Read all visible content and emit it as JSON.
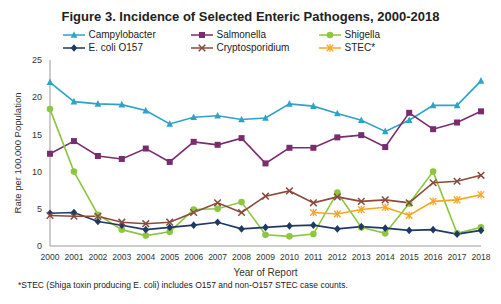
{
  "chart_data": {
    "type": "line",
    "title": "Figure 3. Incidence of Selected Enteric Pathogens, 2000-2018",
    "x_label": "Year of Report",
    "y_label": "Rate per 100,000 Population",
    "annotations": [
      "*STEC (Shiga toxin producing E. coli) includes O157 and non-O157 STEC case counts."
    ],
    "categories": [
      "2000",
      "2001",
      "2002",
      "2003",
      "2004",
      "2005",
      "2006",
      "2007",
      "2008",
      "2009",
      "2010",
      "2011",
      "2012",
      "2013",
      "2014",
      "2015",
      "2016",
      "2017",
      "2018"
    ],
    "series": [
      {
        "name": "Campylobacter",
        "color": "#2ea3c7",
        "marker": "triangle",
        "values": [
          22,
          19.4,
          19.1,
          19,
          18.2,
          16.4,
          17.3,
          17.5,
          17,
          17.2,
          19.1,
          18.8,
          17.8,
          16.9,
          15.4,
          16.9,
          18.9,
          18.9,
          22.2
        ]
      },
      {
        "name": "Salmonella",
        "color": "#7b2c6e",
        "marker": "square",
        "values": [
          12.4,
          14.1,
          12.1,
          11.7,
          13.1,
          11.3,
          14,
          13.6,
          14.5,
          11.1,
          13.2,
          13.2,
          14.6,
          14.9,
          13.3,
          17.9,
          15.7,
          16.6,
          18.1
        ]
      },
      {
        "name": "Shigella",
        "color": "#8dc63f",
        "marker": "circle",
        "values": [
          18.4,
          10,
          4.2,
          2.2,
          1.4,
          1.9,
          4.9,
          5,
          5.9,
          1.5,
          1.3,
          1.6,
          7.2,
          2.5,
          1.7,
          5.7,
          10,
          1.7,
          2.5
        ]
      },
      {
        "name": "E. coli O157",
        "color": "#1f3864",
        "marker": "diamond",
        "values": [
          4.4,
          4.5,
          3.3,
          2.8,
          2.2,
          2.5,
          2.8,
          3.2,
          2.3,
          2.5,
          2.7,
          2.8,
          2.3,
          2.6,
          2.4,
          2.1,
          2.2,
          1.6,
          2.1
        ]
      },
      {
        "name": "Cryptosporidium",
        "color": "#8b4a3c",
        "marker": "x",
        "values": [
          4.1,
          4,
          4,
          3.2,
          3,
          3.2,
          4.5,
          5.8,
          4.5,
          6.7,
          7.4,
          5.8,
          6.6,
          6,
          6.2,
          5.8,
          8.5,
          8.7,
          9.5
        ]
      },
      {
        "name": "STEC*",
        "color": "#f5a623",
        "marker": "star",
        "values": [
          null,
          null,
          null,
          null,
          null,
          null,
          null,
          null,
          null,
          null,
          null,
          4.5,
          4.3,
          4.9,
          5.2,
          4.1,
          6,
          6.2,
          6.9
        ]
      }
    ],
    "ylim": [
      0,
      25
    ],
    "yticks": [
      0,
      5,
      10,
      15,
      20,
      25
    ],
    "grid": false,
    "legend": "top"
  }
}
